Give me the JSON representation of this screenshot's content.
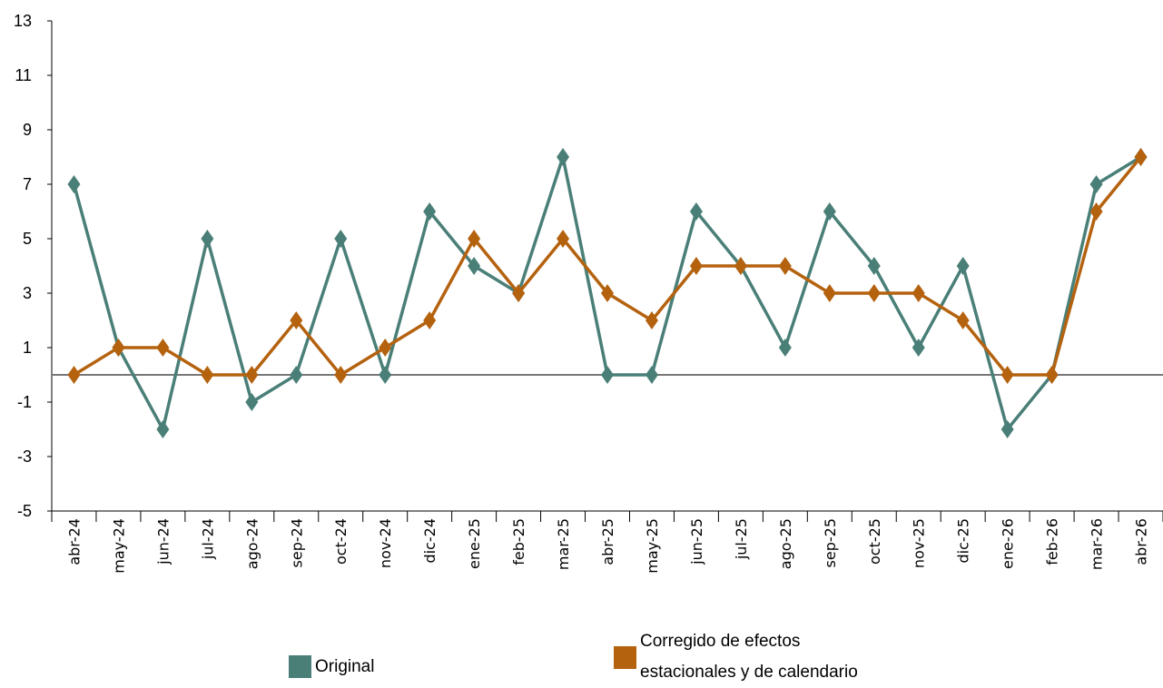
{
  "chart_data": {
    "type": "line",
    "categories": [
      "abr-24",
      "may-24",
      "jun-24",
      "jul-24",
      "ago-24",
      "sep-24",
      "oct-24",
      "nov-24",
      "dic-24",
      "ene-25",
      "feb-25",
      "mar-25",
      "abr-25",
      "may-25",
      "jun-25",
      "jul-25",
      "ago-25",
      "sep-25",
      "oct-25",
      "nov-25",
      "dic-25",
      "ene-26",
      "feb-26",
      "mar-26",
      "abr-26"
    ],
    "series": [
      {
        "name": "Original",
        "color": "#4a7f78",
        "values": [
          7,
          1,
          -2,
          5,
          -1,
          0,
          5,
          0,
          6,
          4,
          3,
          8,
          0,
          0,
          6,
          4,
          1,
          6,
          4,
          1,
          4,
          -2,
          0,
          7,
          8
        ]
      },
      {
        "name": "Corregido de efectos estacionales y de calendario",
        "color": "#b5620f",
        "values": [
          0,
          1,
          1,
          0,
          0,
          2,
          0,
          1,
          2,
          5,
          3,
          5,
          3,
          2,
          4,
          4,
          4,
          3,
          3,
          3,
          2,
          0,
          0,
          6,
          8
        ]
      }
    ],
    "ylim": [
      -5,
      13
    ],
    "yticks": [
      -5,
      -3,
      -1,
      1,
      3,
      5,
      7,
      9,
      11,
      13
    ]
  }
}
